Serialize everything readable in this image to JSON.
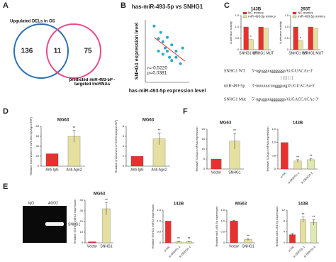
{
  "panel_labels": [
    "A",
    "B",
    "C",
    "D",
    "E",
    "F"
  ],
  "venn": {
    "left_label": "Upgulated DELs in OS",
    "right_label": "predicted miR-493-5P -targeted lncRNAs",
    "counts": [
      136,
      11,
      75
    ]
  },
  "sequences": [
    {
      "name": "SNHG1 WT",
      "seq": "5'-ugugguuggggggaAUGUACAc-3'"
    },
    {
      "name": "miR-493-5p",
      "seq": "3'-uuuuuucuuggguagUUGUACAu-5'"
    },
    {
      "name": "SNHG1 Mut",
      "seq": "5'-ugugguuggggggaAUGACCACAc-3'"
    }
  ],
  "gel": {
    "lanes": [
      "IgG",
      "AGO2"
    ],
    "band": "SNHG1"
  },
  "chart_data": [
    {
      "type": "scatter",
      "title": "has-miR-493-5p vs SNHG1",
      "x_label": "has-miR-493-5p expression level",
      "y_label": "SNHG1 expression level",
      "x": [
        2,
        3,
        3.5,
        4,
        4.5,
        5,
        5,
        5.5,
        6,
        6,
        7,
        7,
        8,
        8.5,
        4,
        3
      ],
      "y": [
        9,
        7,
        8,
        6.5,
        5.5,
        7.2,
        5,
        4,
        6,
        3.5,
        5,
        4,
        3,
        5.5,
        4.5,
        5
      ],
      "color": "#27a9c6",
      "fit_line": {
        "x": [
          2,
          9
        ],
        "y": [
          7.2,
          3.4
        ],
        "color": "#e8312f"
      },
      "annotations": [
        "r=-0.5220",
        "p=0.0381"
      ],
      "xlim": [
        0,
        10
      ],
      "ylim": [
        0,
        10
      ]
    },
    {
      "type": "bar",
      "title": "143B",
      "y_label": "Luciferase activity",
      "categories": [
        "SNHG1 WT",
        "SNHG1 MUT"
      ],
      "series": [
        {
          "name": "NC mimics",
          "color": "#e8312f",
          "values": [
            1.0,
            1.0
          ]
        },
        {
          "name": "miR-493-5p mimics",
          "color": "#e6e0a0",
          "values": [
            0.45,
            0.95
          ]
        }
      ],
      "significance": [
        "*",
        null
      ],
      "ylim": [
        0,
        1.5
      ],
      "yticks": [
        0,
        0.5,
        {
          "value": 1,
          "label": "1.0"
        },
        1.5
      ]
    },
    {
      "type": "bar",
      "title": "293T",
      "y_label": "Luciferase activity",
      "categories": [
        "SNHG1 WT",
        "SNHG1 MUT"
      ],
      "series": [
        {
          "name": "NC mimics",
          "color": "#e8312f",
          "values": [
            1.0,
            1.0
          ]
        },
        {
          "name": "miR-493-5p mimics",
          "color": "#e6e0a0",
          "values": [
            0.4,
            0.95
          ]
        }
      ],
      "significance": [
        "*",
        null
      ],
      "ylim": [
        0,
        1.5
      ],
      "yticks": [
        0,
        0.5,
        {
          "value": 1,
          "label": "1.0"
        },
        1.5
      ]
    },
    {
      "type": "bar",
      "title": "MG63",
      "y_label": "Relative enrichment of miR-493-5p(Ago2-RIP)",
      "categories": [
        "Anti-IgG",
        "Anti-Ago2"
      ],
      "values": [
        25,
        60
      ],
      "errors": [
        0,
        12
      ],
      "colors": [
        "#e8312f",
        "#e6e0a0"
      ],
      "significance": [
        null,
        "**"
      ],
      "ylim": [
        0,
        80
      ],
      "yticks": [
        0,
        20,
        40,
        60,
        80
      ]
    },
    {
      "type": "bar",
      "title": "MG63",
      "y_label": "Relative enrichment of SNHG1(Ago2-RIP)",
      "categories": [
        "Anti-IgG",
        "Anti-Ago2"
      ],
      "values": [
        2,
        5.5
      ],
      "errors": [
        0,
        1.2
      ],
      "colors": [
        "#e8312f",
        "#e6e0a0"
      ],
      "significance": [
        null,
        "**"
      ],
      "ylim": [
        0,
        8
      ],
      "yticks": [
        0,
        2,
        4,
        6,
        8
      ]
    },
    {
      "type": "bar",
      "title": "MG63",
      "y_label": "Relative S100A4 mRNA expression",
      "categories": [
        "Vector",
        "SNHG1"
      ],
      "values": [
        5,
        14
      ],
      "errors": [
        0,
        4
      ],
      "colors": [
        "#e8312f",
        "#e6e0a0"
      ],
      "significance": [
        null,
        "**"
      ],
      "ylim": [
        0,
        20
      ],
      "yticks": [
        0,
        5,
        10,
        15,
        20
      ]
    },
    {
      "type": "bar",
      "title": "143B",
      "y_label": "Relative S100A4 mRNA expression",
      "categories": [
        "si-NC",
        "si-SNHG1-1",
        "si-SNHG1-2"
      ],
      "values": [
        1.0,
        0.3,
        0.35
      ],
      "errors": [
        0,
        0.05,
        0.05
      ],
      "colors": [
        "#e8312f",
        "#e6e0a0",
        "#dfe8b0"
      ],
      "significance": [
        null,
        "**",
        "**"
      ],
      "ylim": [
        0,
        1.5
      ],
      "yticks": [
        0,
        0.5,
        {
          "value": 1,
          "label": "1.0"
        },
        1.5
      ]
    },
    {
      "type": "bar",
      "title": "MG63",
      "y_label": "Relative SNHG1 mRNA expression",
      "categories": [
        "Vector",
        "SNHG1"
      ],
      "values": [
        1,
        32
      ],
      "errors": [
        0,
        6
      ],
      "colors": [
        "#e8312f",
        "#e6e0a0"
      ],
      "significance": [
        null,
        "**"
      ],
      "ylim": [
        0,
        40
      ],
      "yticks": [
        0,
        10,
        20,
        30,
        40
      ]
    },
    {
      "type": "bar",
      "title": "143B",
      "y_label": "Relative SNHG1 mRNA expression",
      "categories": [
        "si-NC",
        "si-SNHG1-1",
        "si-SNHG1-2"
      ],
      "values": [
        1.0,
        0.05,
        0.05
      ],
      "errors": [
        0,
        0.02,
        0.02
      ],
      "colors": [
        "#e8312f",
        "#e6e0a0",
        "#dfe8b0"
      ],
      "significance": [
        null,
        "**",
        "**"
      ],
      "ylim": [
        0,
        1.5
      ],
      "yticks": [
        0,
        0.5,
        {
          "value": 1,
          "label": "1.0"
        },
        1.5
      ]
    },
    {
      "type": "bar",
      "title": "MG63",
      "y_label": "Relative miR-493-5p expression",
      "categories": [
        "Vector",
        "SNHG1"
      ],
      "values": [
        1.0,
        0.15
      ],
      "errors": [
        0.03,
        0.04
      ],
      "colors": [
        "#e8312f",
        "#e6e0a0"
      ],
      "significance": [
        null,
        "**"
      ],
      "ylim": [
        0,
        1.5
      ],
      "yticks": [
        0,
        0.5,
        {
          "value": 1,
          "label": "1.0"
        },
        1.5
      ]
    },
    {
      "type": "bar",
      "title": "143B",
      "y_label": "Relative miR-493-5p expression",
      "categories": [
        "si-NC",
        "si-SNHG1-1",
        "si-SNHG1-2"
      ],
      "values": [
        3,
        8.5,
        7.5
      ],
      "errors": [
        0.4,
        1,
        1
      ],
      "colors": [
        "#e8312f",
        "#e6e0a0",
        "#dfe8b0"
      ],
      "significance": [
        null,
        "**",
        "**"
      ],
      "ylim": [
        0,
        12
      ],
      "yticks": [
        0,
        4,
        8,
        12
      ]
    }
  ]
}
